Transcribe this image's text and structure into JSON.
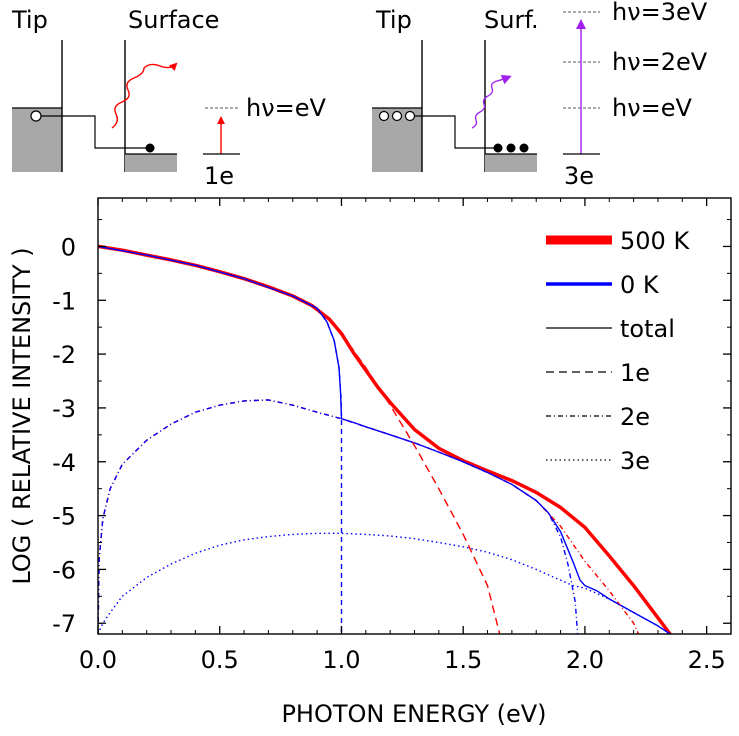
{
  "diagram_left": {
    "tip_label": "Tip",
    "surface_label": "Surface",
    "energy_label": "hν=eV",
    "electron_label": "1e"
  },
  "diagram_right": {
    "tip_label": "Tip",
    "surface_label": "Surf.",
    "energy_labels": [
      "hν=3eV",
      "hν=2eV",
      "hν=eV"
    ],
    "electron_label": "3e"
  },
  "chart_data": {
    "type": "line",
    "xlabel": "PHOTON ENERGY (eV)",
    "ylabel": "LOG ( RELATIVE INTENSITY )",
    "xlim": [
      0.0,
      2.6
    ],
    "ylim": [
      -7.2,
      0.9
    ],
    "xticks": [
      0.0,
      0.5,
      1.0,
      1.5,
      2.0,
      2.5
    ],
    "xtick_labels": [
      "0.0",
      "0.5",
      "1.0",
      "1.5",
      "2.0",
      "2.5"
    ],
    "yticks": [
      0,
      -1,
      -2,
      -3,
      -4,
      -5,
      -6,
      -7
    ],
    "ytick_labels": [
      "0",
      "-1",
      "-2",
      "-3",
      "-4",
      "-5",
      "-6",
      "-7"
    ],
    "legend_position": "top-right",
    "legend": [
      "500 K",
      "0 K",
      "total",
      "1e",
      "2e",
      "3e"
    ],
    "colors": {
      "hot": "#ff0000",
      "cold": "#0000ff",
      "axis": "#000000"
    },
    "series": [
      {
        "name": "500 K total",
        "color": "#ff0000",
        "dash": "solid",
        "width": 3.5,
        "x": [
          0,
          0.1,
          0.2,
          0.3,
          0.4,
          0.5,
          0.6,
          0.7,
          0.8,
          0.88,
          0.95,
          1.0,
          1.05,
          1.1,
          1.15,
          1.2,
          1.3,
          1.4,
          1.5,
          1.6,
          1.7,
          1.8,
          1.9,
          2.0,
          2.1,
          2.2,
          2.3,
          2.35
        ],
        "y": [
          0,
          -0.07,
          -0.16,
          -0.25,
          -0.35,
          -0.47,
          -0.6,
          -0.75,
          -0.92,
          -1.1,
          -1.35,
          -1.62,
          -1.98,
          -2.3,
          -2.62,
          -2.9,
          -3.4,
          -3.75,
          -3.98,
          -4.17,
          -4.35,
          -4.57,
          -4.85,
          -5.22,
          -5.75,
          -6.3,
          -6.9,
          -7.2
        ]
      },
      {
        "name": "0 K total",
        "color": "#0000ff",
        "dash": "solid",
        "width": 1.4,
        "x": [
          0,
          0.2,
          0.4,
          0.6,
          0.8,
          0.9,
          0.94,
          0.97,
          0.99,
          0.996,
          1.0,
          1.05,
          1.1,
          1.2,
          1.3,
          1.4,
          1.5,
          1.6,
          1.7,
          1.8,
          1.85,
          1.9,
          1.95,
          1.98,
          2.0,
          2.05,
          2.1,
          2.2,
          2.3,
          2.35
        ],
        "y": [
          0,
          -0.16,
          -0.35,
          -0.6,
          -0.92,
          -1.15,
          -1.4,
          -1.75,
          -2.25,
          -2.7,
          -3.2,
          -3.27,
          -3.35,
          -3.5,
          -3.65,
          -3.82,
          -4.0,
          -4.2,
          -4.42,
          -4.72,
          -4.95,
          -5.3,
          -5.85,
          -6.2,
          -6.3,
          -6.4,
          -6.55,
          -6.8,
          -7.05,
          -7.2
        ]
      },
      {
        "name": "0 K 1e",
        "color": "#0000ff",
        "dash": "5,4",
        "width": 1.4,
        "x": [
          0.8,
          0.9,
          0.94,
          0.97,
          0.99,
          0.998,
          1.0,
          1.0
        ],
        "y": [
          -0.92,
          -1.15,
          -1.4,
          -1.75,
          -2.25,
          -2.8,
          -3.2,
          -7.2
        ]
      },
      {
        "name": "500 K 1e",
        "color": "#ff0000",
        "dash": "8,5",
        "width": 1.4,
        "x": [
          1.0,
          1.1,
          1.2,
          1.3,
          1.4,
          1.5,
          1.6,
          1.65
        ],
        "y": [
          -1.62,
          -2.25,
          -2.95,
          -3.7,
          -4.5,
          -5.35,
          -6.3,
          -7.2
        ]
      },
      {
        "name": "500 K 2e",
        "color": "#ff0000",
        "dash": "5,3,1,3",
        "width": 1.4,
        "x": [
          0.0,
          0.005,
          0.02,
          0.05,
          0.1,
          0.2,
          0.3,
          0.4,
          0.5,
          0.6,
          0.7,
          0.8,
          0.9,
          1.0,
          1.1,
          1.2,
          1.3,
          1.4,
          1.5,
          1.6,
          1.7,
          1.8,
          1.9,
          2.0,
          2.1,
          2.2,
          2.22
        ],
        "y": [
          -7.2,
          -5.8,
          -5.05,
          -4.5,
          -4.05,
          -3.6,
          -3.3,
          -3.08,
          -2.95,
          -2.87,
          -2.85,
          -2.95,
          -3.08,
          -3.2,
          -3.35,
          -3.5,
          -3.65,
          -3.82,
          -4.0,
          -4.2,
          -4.42,
          -4.72,
          -5.2,
          -5.85,
          -6.4,
          -7.0,
          -7.2
        ]
      },
      {
        "name": "0 K 2e",
        "color": "#0000ff",
        "dash": "5,3,1,3",
        "width": 1.4,
        "x": [
          0.0,
          0.005,
          0.02,
          0.05,
          0.1,
          0.2,
          0.3,
          0.4,
          0.5,
          0.6,
          0.7,
          0.8,
          0.9,
          1.0,
          1.1,
          1.2,
          1.3,
          1.4,
          1.5,
          1.6,
          1.7,
          1.8,
          1.85,
          1.9,
          1.93,
          1.96,
          1.97
        ],
        "y": [
          -7.2,
          -5.8,
          -5.05,
          -4.5,
          -4.05,
          -3.6,
          -3.3,
          -3.08,
          -2.95,
          -2.87,
          -2.85,
          -2.95,
          -3.08,
          -3.2,
          -3.35,
          -3.5,
          -3.65,
          -3.82,
          -4.0,
          -4.2,
          -4.42,
          -4.72,
          -4.95,
          -5.4,
          -5.9,
          -6.6,
          -7.2
        ]
      },
      {
        "name": "0 K 3e",
        "color": "#0000ff",
        "dash": "1.5,3",
        "width": 1.4,
        "x": [
          0.0,
          0.02,
          0.05,
          0.1,
          0.2,
          0.3,
          0.4,
          0.5,
          0.6,
          0.7,
          0.8,
          0.9,
          1.0,
          1.1,
          1.2,
          1.3,
          1.4,
          1.5,
          1.6,
          1.7,
          1.8,
          1.9,
          1.95,
          2.0,
          2.05,
          2.1,
          2.2,
          2.3,
          2.35
        ],
        "y": [
          -7.2,
          -7.0,
          -6.8,
          -6.5,
          -6.15,
          -5.9,
          -5.7,
          -5.55,
          -5.45,
          -5.39,
          -5.35,
          -5.33,
          -5.33,
          -5.35,
          -5.38,
          -5.43,
          -5.5,
          -5.58,
          -5.68,
          -5.82,
          -6.0,
          -6.2,
          -6.3,
          -6.35,
          -6.45,
          -6.55,
          -6.8,
          -7.05,
          -7.2
        ]
      }
    ]
  }
}
